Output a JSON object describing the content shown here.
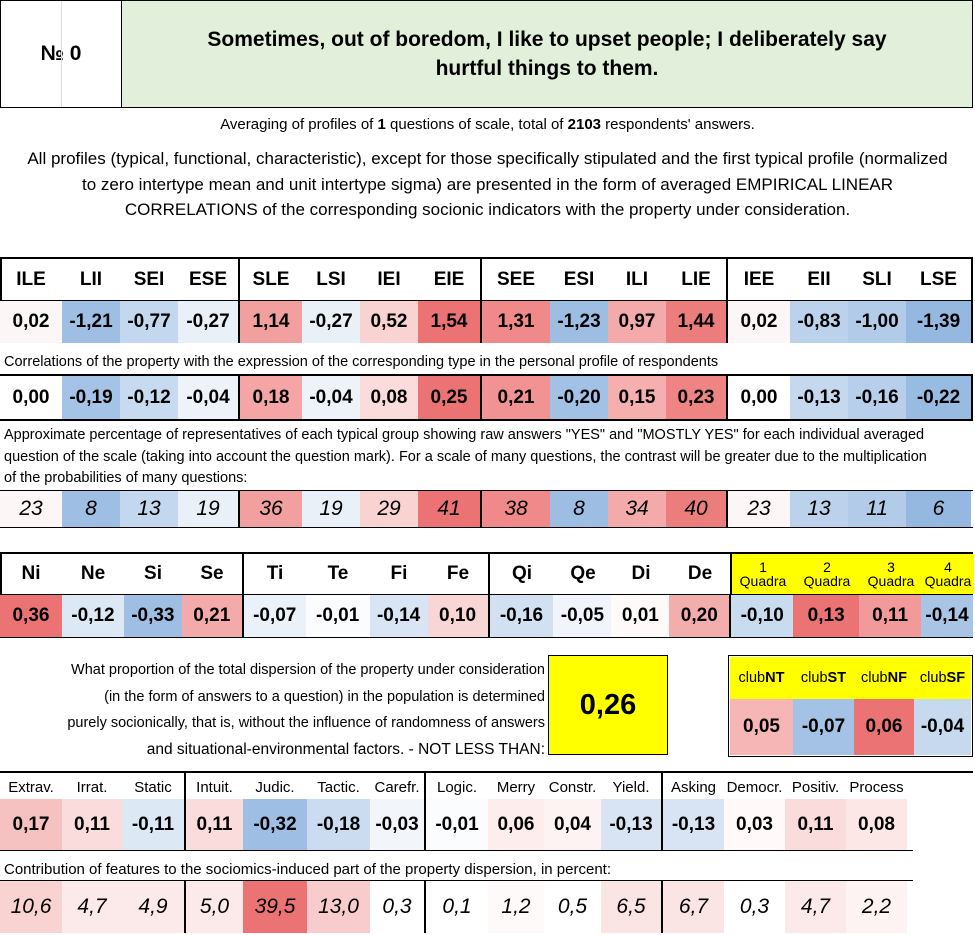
{
  "header": {
    "number_label": "№ 0",
    "question": "Sometimes, out of boredom, I like to upset people; I deliberately say hurtful things to them."
  },
  "averaging": {
    "prefix": "Averaging of profiles of ",
    "questions": "1",
    "middle": " questions of scale, total of ",
    "respondents": "2103",
    "suffix": " respondents' answers."
  },
  "description": "All profiles (typical, functional, characteristic), except for those specifically stipulated and the first typical profile (normalized to zero intertype mean and unit intertype sigma) are presented in the form of averaged EMPIRICAL LINEAR CORRELATIONS of the corresponding socionic indicators with the property under consideration.",
  "types": {
    "labels": [
      "ILE",
      "LII",
      "SEI",
      "ESE",
      "SLE",
      "LSI",
      "IEI",
      "EIE",
      "SEE",
      "ESI",
      "ILI",
      "LIE",
      "IEE",
      "EII",
      "SLI",
      "LSE"
    ],
    "profile": [
      "0,02",
      "-1,21",
      "-0,77",
      "-0,27",
      "1,14",
      "-0,27",
      "0,52",
      "1,54",
      "1,31",
      "-1,23",
      "0,97",
      "1,44",
      "0,02",
      "-0,83",
      "-1,00",
      "-1,39"
    ],
    "profile_colors": [
      "#fdf6f6",
      "#9ebfe3",
      "#c3d7ee",
      "#e9f0f8",
      "#f29f9f",
      "#e9f0f8",
      "#f9d2d2",
      "#eb7373",
      "#f08989",
      "#9dbde3",
      "#f4aaaa",
      "#ec7d7d",
      "#fdf6f6",
      "#bbd1ec",
      "#b1cbe9",
      "#95b8e1"
    ],
    "corr_caption": "Correlations of the property with the expression of the corresponding type in the personal profile of respondents",
    "corr": [
      "0,00",
      "-0,19",
      "-0,12",
      "-0,04",
      "0,18",
      "-0,04",
      "0,08",
      "0,25",
      "0,21",
      "-0,20",
      "0,15",
      "0,23",
      "0,00",
      "-0,13",
      "-0,16",
      "-0,22"
    ],
    "corr_colors": [
      "#ffffff",
      "#a5c3e6",
      "#c8daef",
      "#eef3fa",
      "#f5a5a5",
      "#eef3fa",
      "#fbdcdc",
      "#eb7373",
      "#f29393",
      "#a2c1e5",
      "#f5afaf",
      "#ee8484",
      "#ffffff",
      "#c5d8ee",
      "#b7cfea",
      "#98bbe2"
    ],
    "pct_caption": "Approximate percentage of representatives of each typical group showing raw answers \"YES\" and \"MOSTLY YES\" for each individual averaged question of the scale (taking into account the question mark). For a scale of many questions, the contrast will be greater due to the multiplication of the probabilities of many questions:",
    "pct": [
      "23",
      "8",
      "13",
      "19",
      "36",
      "19",
      "29",
      "41",
      "38",
      "8",
      "34",
      "40",
      "23",
      "13",
      "11",
      "6"
    ],
    "pct_colors": [
      "#fdf6f6",
      "#9ebfe3",
      "#c3d7ee",
      "#e9f0f8",
      "#f29f9f",
      "#e9f0f8",
      "#f9d2d2",
      "#eb7373",
      "#f08989",
      "#9dbde3",
      "#f4aaaa",
      "#ec7d7d",
      "#fdf6f6",
      "#bbd1ec",
      "#b1cbe9",
      "#95b8e1"
    ]
  },
  "functions": {
    "labels": [
      "Ni",
      "Ne",
      "Si",
      "Se",
      "Ti",
      "Te",
      "Fi",
      "Fe",
      "Qi",
      "Qe",
      "Di",
      "De"
    ],
    "values": [
      "0,36",
      "-0,12",
      "-0,33",
      "0,21",
      "-0,07",
      "-0,01",
      "-0,14",
      "0,10",
      "-0,16",
      "-0,05",
      "0,01",
      "0,20"
    ],
    "colors": [
      "#eb7373",
      "#dde8f5",
      "#9ebfe3",
      "#f4aaaa",
      "#ebf1f9",
      "#fbfcfe",
      "#d9e5f4",
      "#f9d6d6",
      "#d2e1f2",
      "#f1f5fb",
      "#fefafa",
      "#f4adad"
    ]
  },
  "quadras": {
    "nums": [
      "1",
      "2",
      "3",
      "4"
    ],
    "word": "Quadra",
    "values": [
      "-0,10",
      "0,13",
      "0,11",
      "-0,14"
    ],
    "colors": [
      "#c9dbef",
      "#eb7373",
      "#f29a9a",
      "#a9c5e6"
    ]
  },
  "proportion": {
    "lines": [
      "What proportion of the total dispersion of the property under consideration",
      "(in the form of answers to a question) in the population is determined",
      "purely socionically, that is, without the influence of randomness of answers",
      "and situational-environmental factors. - NOT LESS THAN:"
    ],
    "value": "0,26"
  },
  "clubs": {
    "prefix": "club",
    "names": [
      "NT",
      "ST",
      "NF",
      "SF"
    ],
    "values": [
      "0,05",
      "-0,07",
      "0,06",
      "-0,04"
    ],
    "colors": [
      "#f6b6b6",
      "#a4c2e5",
      "#eb7373",
      "#c6d9ee"
    ]
  },
  "traits": {
    "labels": [
      "Extrav.",
      "Irrat.",
      "Static",
      "Intuit.",
      "Judic.",
      "Tactic.",
      "Carefr.",
      "Logic.",
      "Merry",
      "Constr.",
      "Yield.",
      "Asking",
      "Democr.",
      "Positiv.",
      "Process"
    ],
    "values": [
      "0,17",
      "0,11",
      "-0,11",
      "0,11",
      "-0,32",
      "-0,18",
      "-0,03",
      "-0,01",
      "0,06",
      "0,04",
      "-0,13",
      "-0,13",
      "0,03",
      "0,11",
      "0,08"
    ],
    "colors": [
      "#f6c1c1",
      "#fadcdc",
      "#dde8f5",
      "#fadcdc",
      "#9ebfe3",
      "#cbdcf0",
      "#f2f6fb",
      "#fafcfe",
      "#fdeded",
      "#fef3f3",
      "#d8e4f3",
      "#d8e4f3",
      "#fff9f9",
      "#fadcdc",
      "#fce6e6"
    ],
    "contrib_caption": "Contribution of features to the sociomics-induced part of the property dispersion, in percent:",
    "contrib": [
      "10,6",
      "4,7",
      "4,9",
      "5,0",
      "39,5",
      "13,0",
      "0,3",
      "0,1",
      "1,2",
      "0,5",
      "6,5",
      "6,7",
      "0,3",
      "4,7",
      "2,2"
    ],
    "contrib_colors": [
      "#f9d2d2",
      "#fceaea",
      "#fceaea",
      "#fceaea",
      "#eb7373",
      "#f8cccc",
      "#ffffff",
      "#ffffff",
      "#fefafa",
      "#ffffff",
      "#fbe4e4",
      "#fbe4e4",
      "#ffffff",
      "#fceaea",
      "#fdf3f3"
    ]
  }
}
